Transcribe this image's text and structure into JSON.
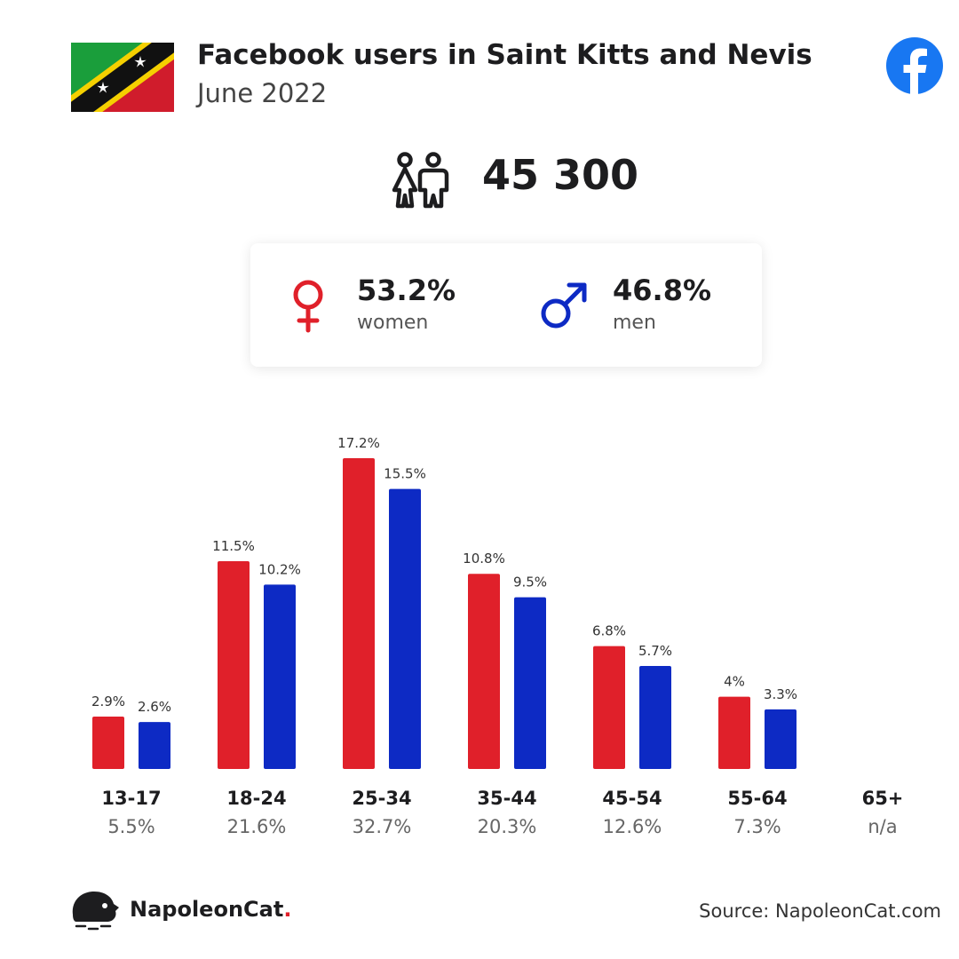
{
  "header": {
    "title": "Facebook users in Saint Kitts and Nevis",
    "subtitle": "June 2022"
  },
  "total_users": "45 300",
  "gender": {
    "women": {
      "pct": "53.2%",
      "label": "women",
      "color": "#e0202a"
    },
    "men": {
      "pct": "46.8%",
      "label": "men",
      "color": "#0d2ac4"
    }
  },
  "chart_data": {
    "type": "bar",
    "categories": [
      "13-17",
      "18-24",
      "25-34",
      "35-44",
      "45-54",
      "55-64",
      "65+"
    ],
    "category_totals": [
      "5.5%",
      "21.6%",
      "32.7%",
      "20.3%",
      "12.6%",
      "7.3%",
      "n/a"
    ],
    "series": [
      {
        "values": [
          2.9,
          11.5,
          17.2,
          10.8,
          6.8,
          4,
          null
        ],
        "labels": [
          "2.9%",
          "11.5%",
          "17.2%",
          "10.8%",
          "6.8%",
          "4%",
          ""
        ],
        "color": "#e0202a"
      },
      {
        "values": [
          2.6,
          10.2,
          15.5,
          9.5,
          5.7,
          3.3,
          null
        ],
        "labels": [
          "2.6%",
          "10.2%",
          "15.5%",
          "9.5%",
          "5.7%",
          "3.3%",
          ""
        ],
        "color": "#0d2ac4"
      }
    ],
    "grid": false,
    "legend": "none"
  },
  "footer": {
    "brand_name": "NapoleonCat",
    "brand_dot": ".",
    "source": "Source: NapoleonCat.com"
  },
  "icons": {
    "flag": "saint-kitts-and-nevis-flag",
    "facebook": "facebook-logo-icon",
    "users": "users-icon",
    "female": "female-symbol-icon",
    "male": "male-symbol-icon",
    "brand": "napoleoncat-logo-icon"
  }
}
